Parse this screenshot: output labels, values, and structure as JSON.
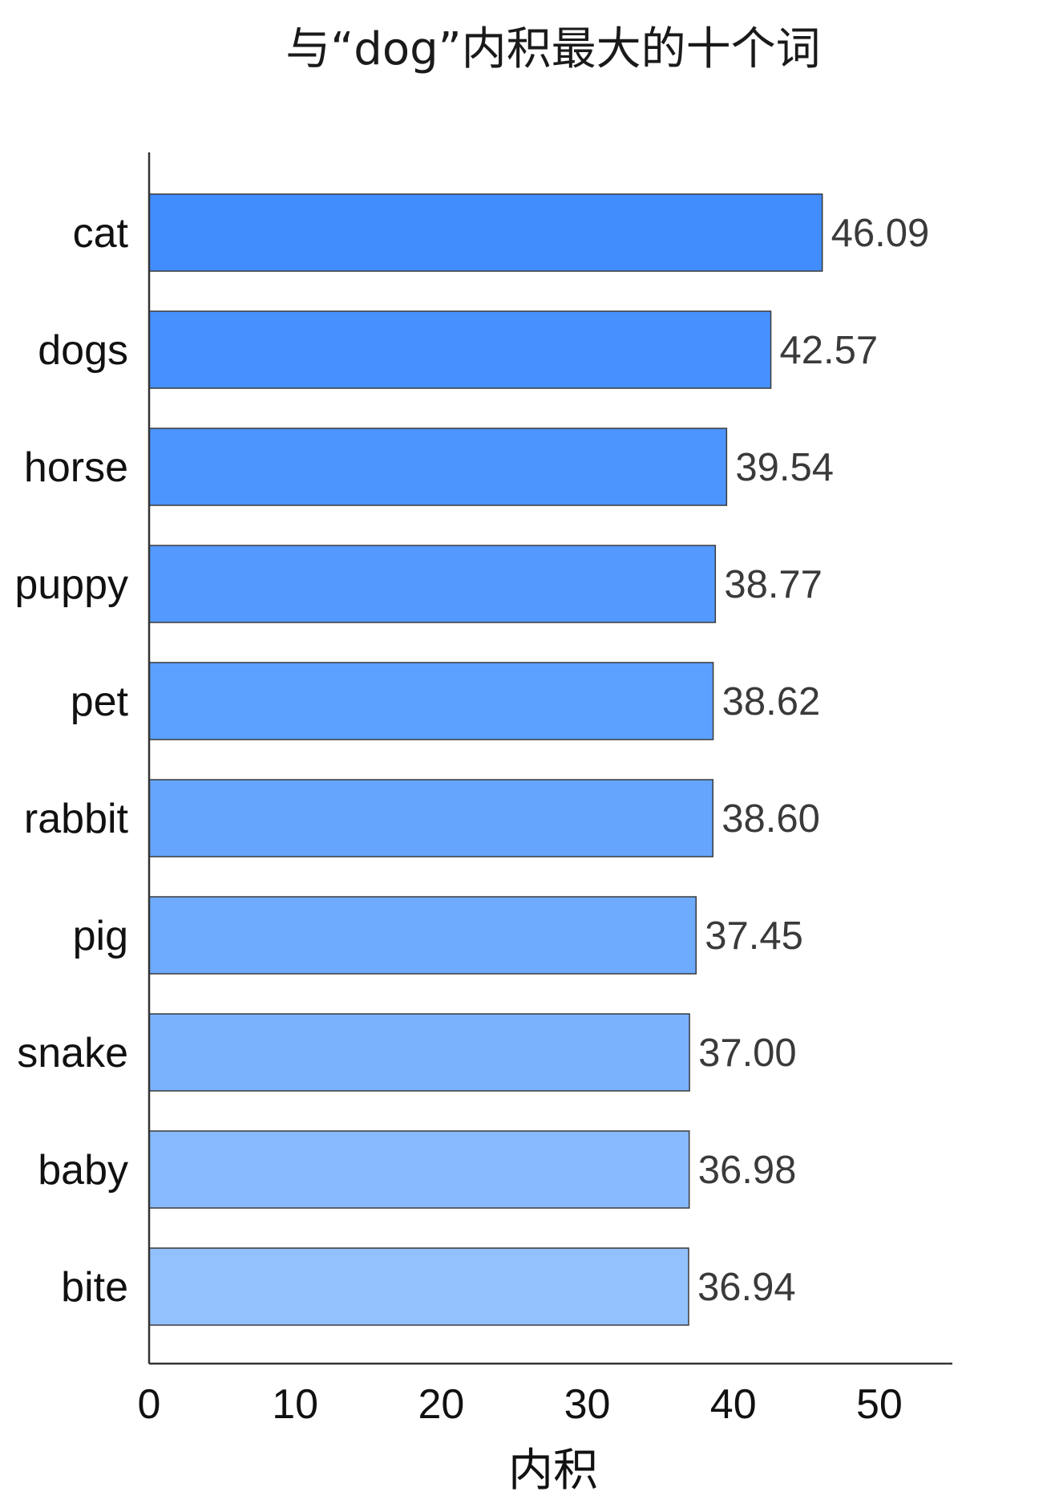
{
  "chart_data": {
    "type": "bar",
    "orientation": "horizontal",
    "title": "与“dog”内积最大的十个词",
    "xlabel": "内积",
    "ylabel": "",
    "categories": [
      "cat",
      "dogs",
      "horse",
      "puppy",
      "pet",
      "rabbit",
      "pig",
      "snake",
      "baby",
      "bite"
    ],
    "values": [
      46.09,
      42.57,
      39.54,
      38.77,
      38.62,
      38.6,
      37.45,
      37.0,
      36.98,
      36.94
    ],
    "value_labels": [
      "46.09",
      "42.57",
      "39.54",
      "38.77",
      "38.62",
      "38.60",
      "37.45",
      "37.00",
      "36.98",
      "36.94"
    ],
    "xlim": [
      0,
      55
    ],
    "xticks": [
      0,
      10,
      20,
      30,
      40,
      50
    ],
    "grid": false,
    "bar_colors": [
      "#418dfe",
      "#4791fe",
      "#4d95fe",
      "#549afe",
      "#5ca0fe",
      "#65a5fe",
      "#6eabfe",
      "#7ab2fe",
      "#87bafe",
      "#93c1fe"
    ],
    "edge_color": "#3a3a3a"
  }
}
